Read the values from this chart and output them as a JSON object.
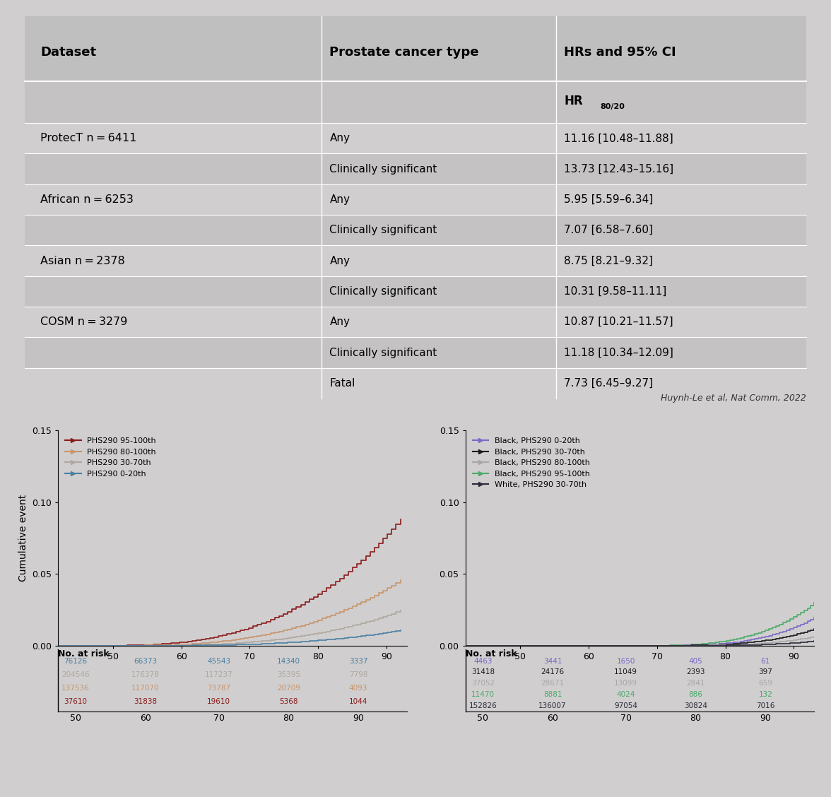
{
  "bg_color": "#d0cece",
  "table_header_bg": "#bfbfbf",
  "table_row_bg1": "#d0cece",
  "table_row_bg2": "#c4c2c2",
  "table_col1": "Dataset",
  "table_col2": "Prostate cancer type",
  "table_col3": "HRs and 95% CI",
  "table_rows": [
    [
      "ProtecT n = 6411",
      "Any",
      "11.16 [10.48–11.88]"
    ],
    [
      "",
      "Clinically significant",
      "13.73 [12.43–15.16]"
    ],
    [
      "African n = 6253",
      "Any",
      "5.95 [5.59–6.34]"
    ],
    [
      "",
      "Clinically significant",
      "7.07 [6.58–7.60]"
    ],
    [
      "Asian n = 2378",
      "Any",
      "8.75 [8.21–9.32]"
    ],
    [
      "",
      "Clinically significant",
      "10.31 [9.58–11.11]"
    ],
    [
      "COSM n = 3279",
      "Any",
      "10.87 [10.21–11.57]"
    ],
    [
      "",
      "Clinically significant",
      "11.18 [10.34–12.09]"
    ],
    [
      "",
      "Fatal",
      "7.73 [6.45–9.27]"
    ]
  ],
  "citation": "Huynh-Le et al, Nat Comm, 2022",
  "left_legend": [
    {
      "label": "PHS290 95-100th",
      "color": "#8b1a1a"
    },
    {
      "label": "PHS290 80-100th",
      "color": "#c8956c"
    },
    {
      "label": "PHS290 30-70th",
      "color": "#b0a8a0"
    },
    {
      "label": "PHS290 0-20th",
      "color": "#4a7fa5"
    }
  ],
  "right_legend": [
    {
      "label": "Black, PHS290 0-20th",
      "color": "#7b68c8"
    },
    {
      "label": "Black, PHS290 30-70th",
      "color": "#1a1a1a"
    },
    {
      "label": "Black, PHS290 80-100th",
      "color": "#a8a8a8"
    },
    {
      "label": "Black, PHS290 95-100th",
      "color": "#4aaa6a"
    },
    {
      "label": "White, PHS290 30-70th",
      "color": "#2a2a3a"
    }
  ],
  "left_risk_colors": [
    "#4a7fa5",
    "#b0a8a0",
    "#c8956c",
    "#8b1a1a"
  ],
  "left_risk_labels": [
    [
      "76126",
      "66373",
      "45543",
      "14340",
      "3337"
    ],
    [
      "204546",
      "176378",
      "117237",
      "35395",
      "7798"
    ],
    [
      "137536",
      "117070",
      "73787",
      "20709",
      "4093"
    ],
    [
      "37610",
      "31838",
      "19610",
      "5368",
      "1044"
    ]
  ],
  "right_risk_colors": [
    "#7b68c8",
    "#1a1a1a",
    "#a8a8a8",
    "#4aaa6a",
    "#2a2a3a"
  ],
  "right_risk_labels": [
    [
      "4463",
      "3441",
      "1650",
      "405",
      "61"
    ],
    [
      "31418",
      "24176",
      "11049",
      "2393",
      "397"
    ],
    [
      "37052",
      "28671",
      "13099",
      "2841",
      "659"
    ],
    [
      "11470",
      "8881",
      "4024",
      "886",
      "132"
    ],
    [
      "152826",
      "136007",
      "97054",
      "30824",
      "7016"
    ]
  ],
  "x_ticks": [
    50,
    60,
    70,
    80,
    90
  ],
  "ylim": [
    0,
    0.15
  ],
  "ylabel": "Cumulative event"
}
